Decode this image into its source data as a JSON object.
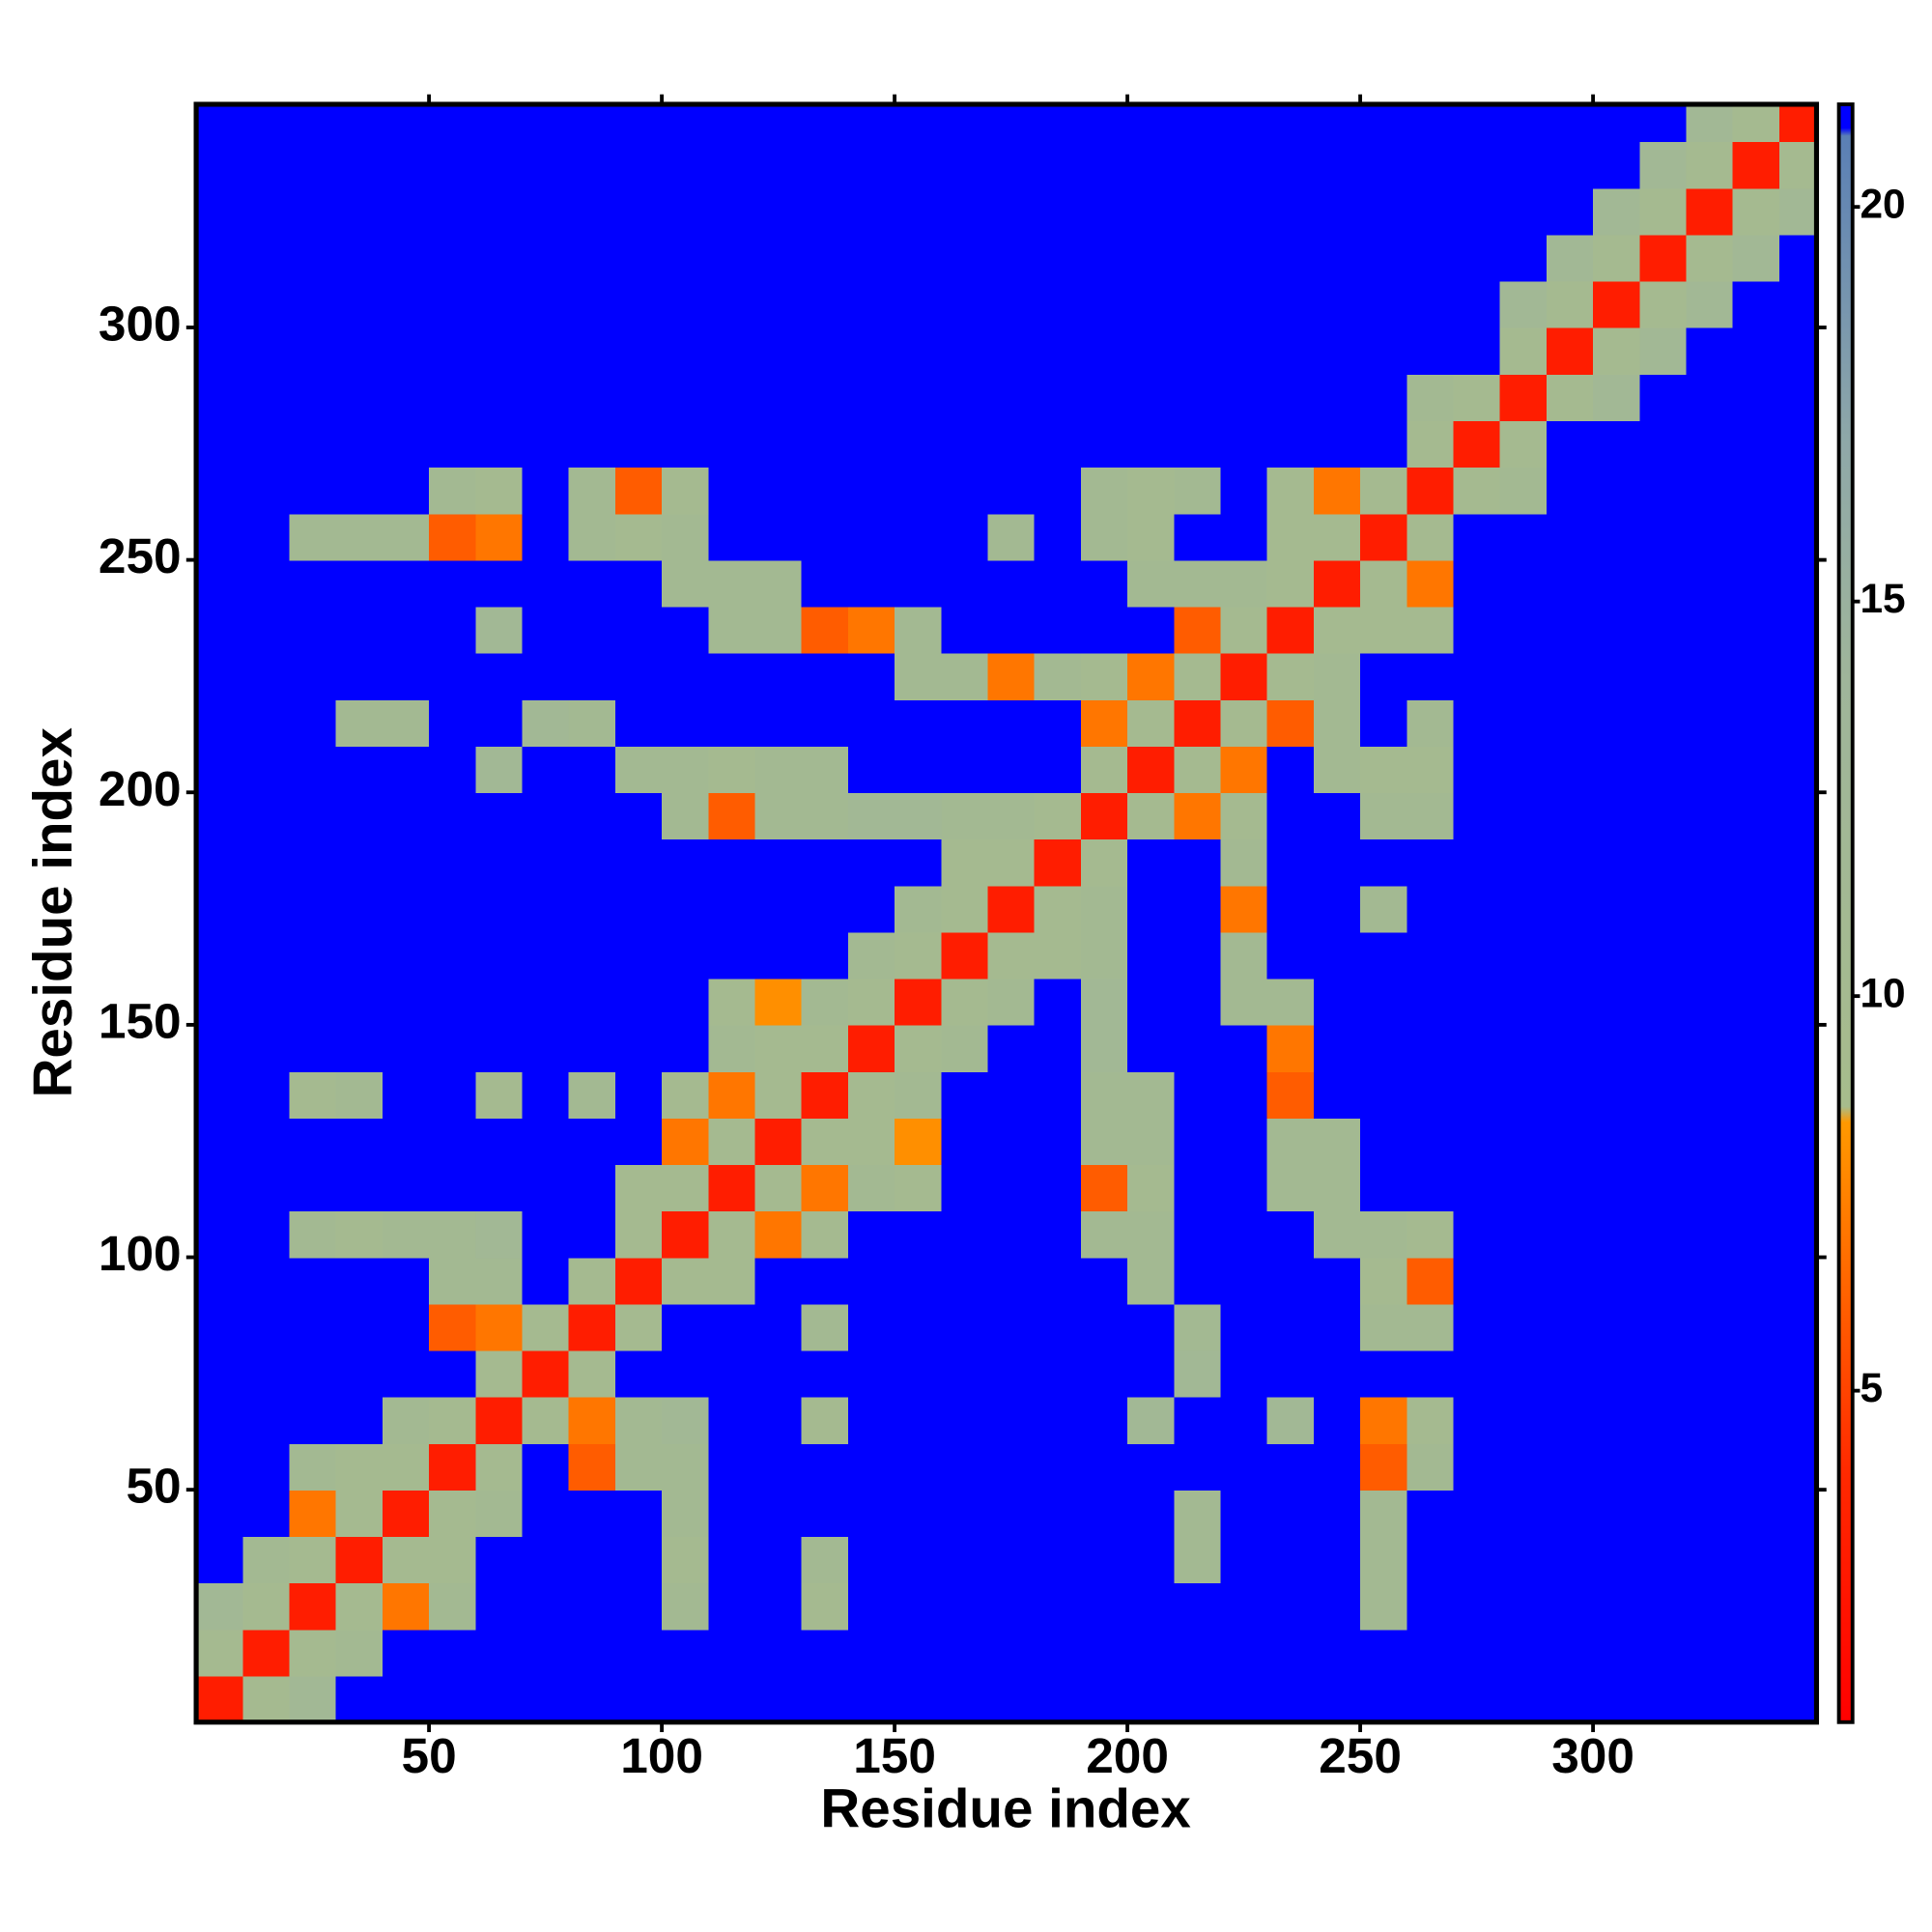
{
  "chart_data": {
    "type": "heatmap",
    "xlabel": "Residue index",
    "ylabel": "Residue index",
    "xlim": [
      0,
      348
    ],
    "ylim": [
      0,
      348
    ],
    "xticks": [
      50,
      100,
      150,
      200,
      250,
      300
    ],
    "yticks": [
      50,
      100,
      150,
      200,
      250,
      300
    ],
    "xbins": [
      0,
      10,
      20,
      30,
      40,
      50,
      60,
      70,
      80,
      90,
      100,
      110,
      120,
      130,
      140,
      150,
      160,
      170,
      180,
      190,
      200,
      210,
      220,
      230,
      240,
      250,
      260,
      270,
      280,
      290,
      300,
      310,
      320,
      330,
      340,
      348
    ],
    "ybins": [
      0,
      10,
      20,
      30,
      40,
      50,
      60,
      70,
      80,
      90,
      100,
      110,
      120,
      130,
      140,
      150,
      160,
      170,
      180,
      190,
      200,
      210,
      220,
      230,
      240,
      250,
      260,
      270,
      280,
      290,
      300,
      310,
      320,
      330,
      340,
      348
    ],
    "clim": [
      0.8,
      21.3
    ],
    "cticks": [
      5,
      10,
      15,
      20
    ],
    "colorscale": [
      {
        "value": 0.8,
        "color": "#ff0000"
      },
      {
        "value": 4,
        "color": "#ff2a00"
      },
      {
        "value": 8.4,
        "color": "#ff9900"
      },
      {
        "value": 8.6,
        "color": "#a7bc8c"
      },
      {
        "value": 14,
        "color": "#9fb59a"
      },
      {
        "value": 17,
        "color": "#8fa8a8"
      },
      {
        "value": 20.9,
        "color": "#5a7fb5"
      },
      {
        "value": 21,
        "color": "#0000ff"
      }
    ],
    "z": [
      [
        3,
        10,
        12,
        21,
        21,
        21,
        21,
        21,
        21,
        21,
        21,
        21,
        21,
        21,
        21,
        21,
        21,
        21,
        21,
        21,
        21,
        21,
        21,
        21,
        21,
        21,
        21,
        21,
        21,
        21,
        21,
        21,
        21,
        21,
        21
      ],
      [
        10,
        3,
        10,
        11,
        21,
        21,
        21,
        21,
        21,
        21,
        21,
        21,
        21,
        21,
        21,
        21,
        21,
        21,
        21,
        21,
        21,
        21,
        21,
        21,
        21,
        21,
        21,
        21,
        21,
        21,
        21,
        21,
        21,
        21,
        21
      ],
      [
        12,
        10,
        3,
        10,
        7,
        11,
        21,
        21,
        21,
        21,
        11,
        21,
        21,
        10,
        21,
        21,
        21,
        21,
        21,
        21,
        21,
        21,
        21,
        21,
        21,
        11,
        21,
        21,
        21,
        21,
        21,
        21,
        21,
        21,
        21
      ],
      [
        21,
        11,
        10,
        3,
        10,
        10,
        21,
        21,
        21,
        21,
        10,
        21,
        21,
        11,
        21,
        21,
        21,
        21,
        21,
        21,
        21,
        11,
        21,
        21,
        21,
        11,
        21,
        21,
        21,
        21,
        21,
        21,
        21,
        21,
        21
      ],
      [
        21,
        21,
        7,
        10,
        3,
        10,
        11,
        21,
        21,
        21,
        11,
        21,
        21,
        21,
        21,
        21,
        21,
        21,
        21,
        21,
        21,
        11,
        21,
        21,
        21,
        11,
        21,
        21,
        21,
        21,
        21,
        21,
        21,
        21,
        21
      ],
      [
        21,
        21,
        11,
        10,
        10,
        3,
        10,
        21,
        6,
        11,
        11,
        21,
        21,
        21,
        21,
        21,
        21,
        21,
        21,
        21,
        21,
        21,
        21,
        21,
        21,
        6,
        11,
        21,
        21,
        21,
        21,
        21,
        21,
        21,
        21
      ],
      [
        21,
        21,
        21,
        21,
        11,
        10,
        3,
        10,
        7,
        11,
        12,
        21,
        21,
        10,
        21,
        21,
        21,
        21,
        21,
        21,
        12,
        21,
        21,
        12,
        21,
        7,
        10,
        21,
        21,
        21,
        21,
        21,
        21,
        21,
        21
      ],
      [
        21,
        21,
        21,
        21,
        21,
        21,
        10,
        3,
        10,
        21,
        21,
        21,
        21,
        21,
        21,
        21,
        21,
        21,
        21,
        21,
        21,
        12,
        21,
        21,
        21,
        21,
        21,
        21,
        21,
        21,
        21,
        21,
        21,
        21,
        21
      ],
      [
        21,
        21,
        21,
        21,
        21,
        6,
        7,
        10,
        3,
        10,
        21,
        21,
        21,
        11,
        21,
        21,
        21,
        21,
        21,
        21,
        21,
        11,
        21,
        21,
        21,
        11,
        11,
        21,
        21,
        21,
        21,
        21,
        21,
        21,
        21
      ],
      [
        21,
        21,
        21,
        21,
        21,
        11,
        11,
        21,
        10,
        3,
        10,
        10,
        21,
        21,
        21,
        21,
        21,
        21,
        21,
        21,
        11,
        21,
        21,
        21,
        21,
        10,
        6,
        21,
        21,
        21,
        21,
        21,
        21,
        21,
        21
      ],
      [
        21,
        21,
        11,
        10,
        11,
        11,
        12,
        21,
        21,
        10,
        3,
        10,
        7,
        10,
        21,
        21,
        21,
        21,
        21,
        11,
        11,
        21,
        21,
        21,
        11,
        11,
        10,
        21,
        21,
        21,
        21,
        21,
        21,
        21,
        21
      ],
      [
        21,
        21,
        21,
        21,
        21,
        21,
        21,
        21,
        21,
        10,
        10,
        3,
        10,
        7,
        11,
        10,
        21,
        21,
        21,
        6,
        10,
        21,
        21,
        11,
        11,
        21,
        21,
        21,
        21,
        21,
        21,
        21,
        21,
        21,
        21
      ],
      [
        21,
        21,
        21,
        21,
        21,
        21,
        21,
        21,
        21,
        21,
        7,
        10,
        3,
        10,
        10,
        8,
        21,
        21,
        21,
        11,
        11,
        21,
        21,
        11,
        11,
        21,
        21,
        21,
        21,
        21,
        21,
        21,
        21,
        21,
        21
      ],
      [
        21,
        21,
        10,
        11,
        21,
        21,
        10,
        21,
        11,
        21,
        10,
        7,
        10,
        3,
        10,
        11,
        21,
        21,
        21,
        11,
        11,
        21,
        21,
        6,
        21,
        21,
        21,
        21,
        21,
        21,
        21,
        21,
        21,
        21,
        21
      ],
      [
        21,
        21,
        21,
        21,
        21,
        21,
        21,
        21,
        21,
        21,
        21,
        11,
        10,
        10,
        3,
        10,
        11,
        21,
        21,
        12,
        21,
        21,
        21,
        7,
        21,
        21,
        21,
        21,
        21,
        21,
        21,
        21,
        21,
        21,
        21
      ],
      [
        21,
        21,
        21,
        21,
        21,
        21,
        21,
        21,
        21,
        21,
        21,
        10,
        8,
        11,
        10,
        3,
        10,
        11,
        21,
        12,
        21,
        21,
        11,
        11,
        21,
        21,
        21,
        21,
        21,
        21,
        21,
        21,
        21,
        21,
        21
      ],
      [
        21,
        21,
        21,
        21,
        21,
        21,
        21,
        21,
        21,
        21,
        21,
        21,
        21,
        21,
        11,
        10,
        3,
        10,
        10,
        11,
        21,
        21,
        11,
        21,
        21,
        21,
        21,
        21,
        21,
        21,
        21,
        21,
        21,
        21,
        21
      ],
      [
        21,
        21,
        21,
        21,
        21,
        21,
        21,
        21,
        21,
        21,
        21,
        21,
        21,
        21,
        21,
        11,
        10,
        3,
        10,
        11,
        21,
        21,
        7,
        21,
        21,
        11,
        21,
        21,
        21,
        21,
        21,
        21,
        21,
        21,
        21
      ],
      [
        21,
        21,
        21,
        21,
        21,
        21,
        21,
        21,
        21,
        21,
        21,
        21,
        21,
        21,
        21,
        21,
        10,
        10,
        3,
        10,
        21,
        21,
        11,
        21,
        21,
        21,
        21,
        21,
        21,
        21,
        21,
        21,
        21,
        21,
        21
      ],
      [
        21,
        21,
        21,
        21,
        21,
        21,
        21,
        21,
        21,
        21,
        11,
        6,
        11,
        11,
        12,
        12,
        11,
        11,
        10,
        3,
        10,
        7,
        10,
        21,
        21,
        11,
        11,
        21,
        21,
        21,
        21,
        21,
        21,
        21,
        21
      ],
      [
        21,
        21,
        21,
        21,
        21,
        21,
        12,
        21,
        21,
        11,
        11,
        10,
        11,
        11,
        21,
        21,
        21,
        21,
        21,
        10,
        3,
        10,
        7,
        21,
        11,
        10,
        10,
        21,
        21,
        21,
        21,
        21,
        21,
        21,
        21
      ],
      [
        21,
        21,
        21,
        11,
        11,
        21,
        21,
        12,
        11,
        21,
        21,
        21,
        21,
        21,
        21,
        21,
        21,
        21,
        21,
        7,
        10,
        3,
        10,
        6,
        11,
        21,
        11,
        21,
        21,
        21,
        21,
        21,
        21,
        21,
        21
      ],
      [
        21,
        21,
        21,
        21,
        21,
        21,
        21,
        21,
        21,
        21,
        21,
        21,
        21,
        21,
        21,
        11,
        11,
        7,
        11,
        10,
        7,
        10,
        3,
        10,
        11,
        21,
        21,
        21,
        21,
        21,
        21,
        21,
        21,
        21,
        21
      ],
      [
        21,
        21,
        21,
        21,
        21,
        21,
        12,
        21,
        21,
        21,
        21,
        11,
        11,
        6,
        7,
        11,
        21,
        21,
        21,
        21,
        21,
        6,
        10,
        3,
        10,
        10,
        10,
        21,
        21,
        21,
        21,
        21,
        21,
        21,
        21
      ],
      [
        21,
        21,
        21,
        21,
        21,
        21,
        21,
        21,
        21,
        21,
        11,
        11,
        11,
        21,
        21,
        21,
        21,
        21,
        21,
        21,
        11,
        11,
        11,
        10,
        3,
        10,
        7,
        21,
        21,
        21,
        21,
        21,
        21,
        21,
        21
      ],
      [
        21,
        21,
        11,
        11,
        11,
        6,
        7,
        21,
        11,
        10,
        11,
        21,
        21,
        21,
        21,
        21,
        21,
        11,
        21,
        11,
        10,
        21,
        21,
        10,
        10,
        3,
        10,
        21,
        21,
        21,
        21,
        21,
        21,
        21,
        21
      ],
      [
        21,
        21,
        21,
        21,
        21,
        11,
        10,
        21,
        11,
        6,
        10,
        21,
        21,
        21,
        21,
        21,
        21,
        21,
        21,
        11,
        10,
        11,
        21,
        10,
        7,
        10,
        3,
        10,
        11,
        21,
        21,
        21,
        21,
        21,
        21
      ],
      [
        21,
        21,
        21,
        21,
        21,
        21,
        21,
        21,
        21,
        21,
        21,
        21,
        21,
        21,
        21,
        21,
        21,
        21,
        21,
        21,
        21,
        21,
        21,
        21,
        21,
        21,
        10,
        3,
        10,
        21,
        21,
        21,
        21,
        21,
        21
      ],
      [
        21,
        21,
        21,
        21,
        21,
        21,
        21,
        21,
        21,
        21,
        21,
        21,
        21,
        21,
        21,
        21,
        21,
        21,
        21,
        21,
        21,
        21,
        21,
        21,
        21,
        21,
        11,
        10,
        3,
        10,
        12,
        21,
        21,
        21,
        21
      ],
      [
        21,
        21,
        21,
        21,
        21,
        21,
        21,
        21,
        21,
        21,
        21,
        21,
        21,
        21,
        21,
        21,
        21,
        21,
        21,
        21,
        21,
        21,
        21,
        21,
        21,
        21,
        21,
        21,
        10,
        3,
        10,
        12,
        21,
        21,
        21
      ],
      [
        21,
        21,
        21,
        21,
        21,
        21,
        21,
        21,
        21,
        21,
        21,
        21,
        21,
        21,
        21,
        21,
        21,
        21,
        21,
        21,
        21,
        21,
        21,
        21,
        21,
        21,
        21,
        21,
        12,
        10,
        3,
        10,
        12,
        21,
        21
      ],
      [
        21,
        21,
        21,
        21,
        21,
        21,
        21,
        21,
        21,
        21,
        21,
        21,
        21,
        21,
        21,
        21,
        21,
        21,
        21,
        21,
        21,
        21,
        21,
        21,
        21,
        21,
        21,
        21,
        21,
        12,
        10,
        3,
        10,
        12,
        21
      ],
      [
        21,
        21,
        21,
        21,
        21,
        21,
        21,
        21,
        21,
        21,
        21,
        21,
        21,
        21,
        21,
        21,
        21,
        21,
        21,
        21,
        21,
        21,
        21,
        21,
        21,
        21,
        21,
        21,
        21,
        21,
        12,
        10,
        3,
        10,
        12
      ],
      [
        21,
        21,
        21,
        21,
        21,
        21,
        21,
        21,
        21,
        21,
        21,
        21,
        21,
        21,
        21,
        21,
        21,
        21,
        21,
        21,
        21,
        21,
        21,
        21,
        21,
        21,
        21,
        21,
        21,
        21,
        21,
        12,
        10,
        3,
        10
      ],
      [
        21,
        21,
        21,
        21,
        21,
        21,
        21,
        21,
        21,
        21,
        21,
        21,
        21,
        21,
        21,
        21,
        21,
        21,
        21,
        21,
        21,
        21,
        21,
        21,
        21,
        21,
        21,
        21,
        21,
        21,
        21,
        21,
        12,
        10,
        3
      ]
    ]
  }
}
